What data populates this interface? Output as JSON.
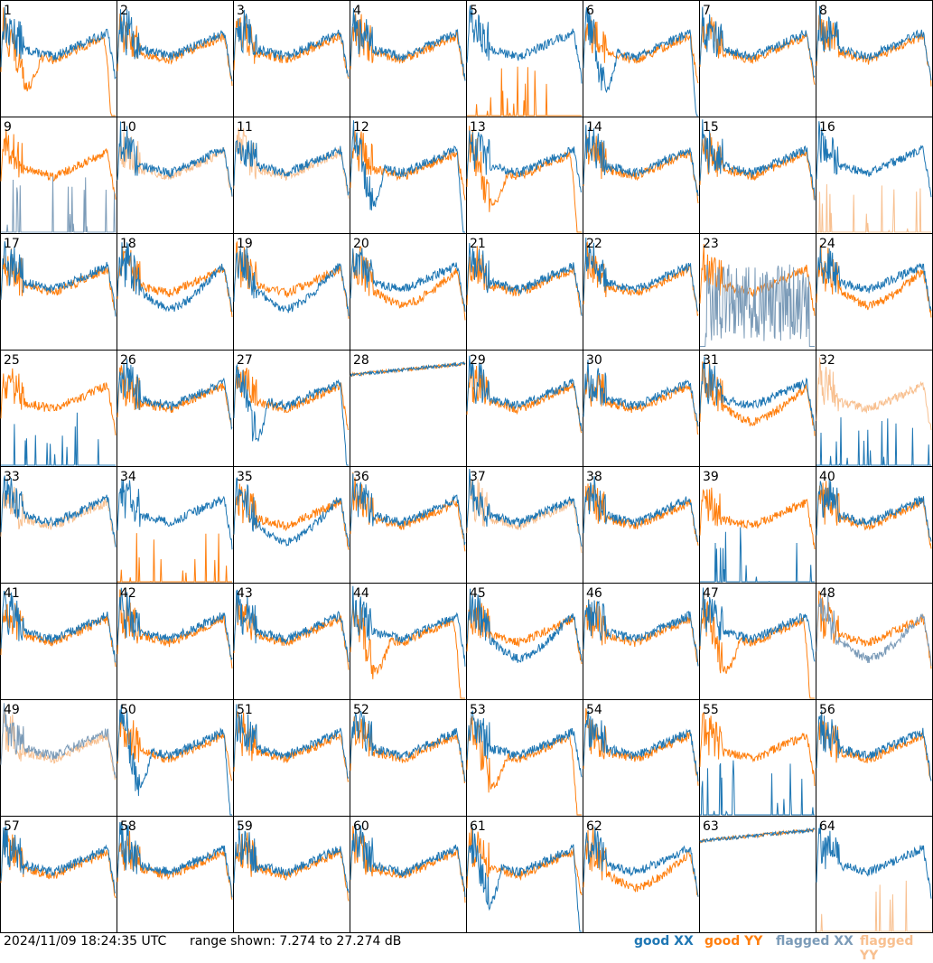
{
  "timestamp": "2024/11/09 18:24:35 UTC",
  "range_text": "range shown: 7.274 to 27.274 dB",
  "legend": {
    "good_xx": "good XX",
    "good_yy": "good YY",
    "flagged_xx": "flagged XX",
    "flagged_yy": "flagged YY"
  },
  "colors": {
    "good_xx": "#1f77b4",
    "good_yy": "#ff7f0e",
    "flagged_xx": "#7b9bb8",
    "flagged_yy": "#f8c090",
    "frame": "#000000"
  },
  "chart_data": {
    "type": "line",
    "description_units": "dB",
    "ylim": [
      7.274,
      27.274
    ],
    "grid": "8x8 small multiples, one panel per antenna, channels along x",
    "panels": [
      {
        "id": "1",
        "xx": "good",
        "yy": "good",
        "style": "yy_drop"
      },
      {
        "id": "2",
        "xx": "good",
        "yy": "good",
        "style": "normal"
      },
      {
        "id": "3",
        "xx": "good",
        "yy": "good",
        "style": "normal"
      },
      {
        "id": "4",
        "xx": "good",
        "yy": "good",
        "style": "normal"
      },
      {
        "id": "5",
        "xx": "good",
        "yy": "good",
        "style": "yy_spikes"
      },
      {
        "id": "6",
        "xx": "good",
        "yy": "good",
        "style": "xx_drop"
      },
      {
        "id": "7",
        "xx": "good",
        "yy": "good",
        "style": "normal"
      },
      {
        "id": "8",
        "xx": "good",
        "yy": "good",
        "style": "normal"
      },
      {
        "id": "9",
        "xx": "flagged",
        "yy": "good",
        "style": "xx_spikes"
      },
      {
        "id": "10",
        "xx": "good",
        "yy": "flagged",
        "style": "normal"
      },
      {
        "id": "11",
        "xx": "good",
        "yy": "flagged",
        "style": "normal"
      },
      {
        "id": "12",
        "xx": "good",
        "yy": "good",
        "style": "xx_drop"
      },
      {
        "id": "13",
        "xx": "good",
        "yy": "good",
        "style": "yy_drop"
      },
      {
        "id": "14",
        "xx": "good",
        "yy": "good",
        "style": "normal"
      },
      {
        "id": "15",
        "xx": "good",
        "yy": "good",
        "style": "normal"
      },
      {
        "id": "16",
        "xx": "good",
        "yy": "flagged",
        "style": "yy_spikes"
      },
      {
        "id": "17",
        "xx": "good",
        "yy": "good",
        "style": "normal"
      },
      {
        "id": "18",
        "xx": "good",
        "yy": "good",
        "style": "xx_low"
      },
      {
        "id": "19",
        "xx": "good",
        "yy": "good",
        "style": "xx_low"
      },
      {
        "id": "20",
        "xx": "good",
        "yy": "good",
        "style": "yy_low"
      },
      {
        "id": "21",
        "xx": "good",
        "yy": "good",
        "style": "normal"
      },
      {
        "id": "22",
        "xx": "good",
        "yy": "good",
        "style": "normal"
      },
      {
        "id": "23",
        "xx": "flagged",
        "yy": "good",
        "style": "xx_noise"
      },
      {
        "id": "24",
        "xx": "good",
        "yy": "good",
        "style": "yy_low"
      },
      {
        "id": "25",
        "xx": "good",
        "yy": "good",
        "style": "xx_spikes"
      },
      {
        "id": "26",
        "xx": "good",
        "yy": "good",
        "style": "normal"
      },
      {
        "id": "27",
        "xx": "good",
        "yy": "good",
        "style": "xx_drop"
      },
      {
        "id": "28",
        "xx": "good",
        "yy": "good",
        "style": "high_flat"
      },
      {
        "id": "29",
        "xx": "good",
        "yy": "good",
        "style": "normal"
      },
      {
        "id": "30",
        "xx": "good",
        "yy": "good",
        "style": "normal"
      },
      {
        "id": "31",
        "xx": "good",
        "yy": "good",
        "style": "yy_low"
      },
      {
        "id": "32",
        "xx": "good",
        "yy": "flagged",
        "style": "xx_spikes"
      },
      {
        "id": "33",
        "xx": "good",
        "yy": "flagged",
        "style": "normal"
      },
      {
        "id": "34",
        "xx": "good",
        "yy": "good",
        "style": "yy_spikes"
      },
      {
        "id": "35",
        "xx": "good",
        "yy": "good",
        "style": "xx_low"
      },
      {
        "id": "36",
        "xx": "good",
        "yy": "good",
        "style": "normal"
      },
      {
        "id": "37",
        "xx": "good",
        "yy": "flagged",
        "style": "normal"
      },
      {
        "id": "38",
        "xx": "good",
        "yy": "good",
        "style": "normal"
      },
      {
        "id": "39",
        "xx": "good",
        "yy": "good",
        "style": "xx_spikes"
      },
      {
        "id": "40",
        "xx": "good",
        "yy": "good",
        "style": "normal"
      },
      {
        "id": "41",
        "xx": "good",
        "yy": "good",
        "style": "normal"
      },
      {
        "id": "42",
        "xx": "good",
        "yy": "good",
        "style": "normal"
      },
      {
        "id": "43",
        "xx": "good",
        "yy": "good",
        "style": "normal"
      },
      {
        "id": "44",
        "xx": "good",
        "yy": "good",
        "style": "yy_drop"
      },
      {
        "id": "45",
        "xx": "good",
        "yy": "good",
        "style": "xx_low"
      },
      {
        "id": "46",
        "xx": "good",
        "yy": "good",
        "style": "normal"
      },
      {
        "id": "47",
        "xx": "good",
        "yy": "good",
        "style": "yy_drop"
      },
      {
        "id": "48",
        "xx": "flagged",
        "yy": "good",
        "style": "xx_low"
      },
      {
        "id": "49",
        "xx": "flagged",
        "yy": "flagged",
        "style": "normal"
      },
      {
        "id": "50",
        "xx": "good",
        "yy": "good",
        "style": "xx_drop"
      },
      {
        "id": "51",
        "xx": "good",
        "yy": "good",
        "style": "normal"
      },
      {
        "id": "52",
        "xx": "good",
        "yy": "good",
        "style": "normal"
      },
      {
        "id": "53",
        "xx": "good",
        "yy": "good",
        "style": "yy_drop"
      },
      {
        "id": "54",
        "xx": "good",
        "yy": "good",
        "style": "normal"
      },
      {
        "id": "55",
        "xx": "good",
        "yy": "good",
        "style": "xx_spikes"
      },
      {
        "id": "56",
        "xx": "good",
        "yy": "good",
        "style": "normal"
      },
      {
        "id": "57",
        "xx": "good",
        "yy": "good",
        "style": "normal"
      },
      {
        "id": "58",
        "xx": "good",
        "yy": "good",
        "style": "normal"
      },
      {
        "id": "59",
        "xx": "good",
        "yy": "good",
        "style": "normal"
      },
      {
        "id": "60",
        "xx": "good",
        "yy": "good",
        "style": "normal"
      },
      {
        "id": "61",
        "xx": "good",
        "yy": "good",
        "style": "xx_drop"
      },
      {
        "id": "62",
        "xx": "good",
        "yy": "good",
        "style": "yy_low"
      },
      {
        "id": "63",
        "xx": "good",
        "yy": "good",
        "style": "high_flat"
      },
      {
        "id": "64",
        "xx": "good",
        "yy": "flagged",
        "style": "yy_spikes"
      }
    ]
  }
}
